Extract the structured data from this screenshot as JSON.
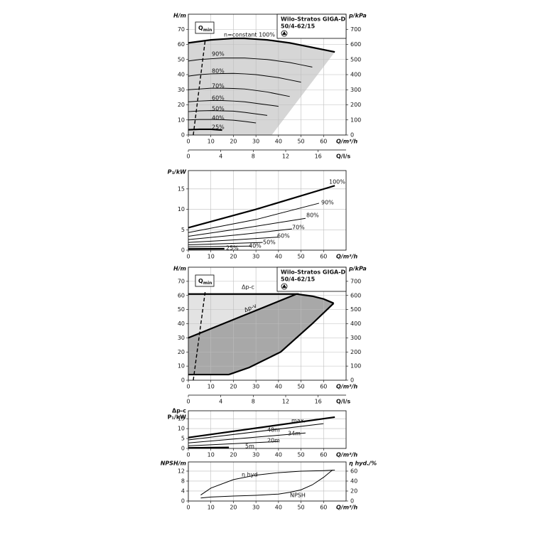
{
  "chart_data": [
    {
      "type": "line",
      "title": "Wilo-Stratos GIGA-D",
      "subtitle": "50/4-62/15",
      "ylabel": "H/m",
      "y2label": "p/kPa",
      "xlabel": "Q/m³/h",
      "x2label": "Q/l/s",
      "xlim": [
        0,
        70
      ],
      "xticks": [
        0,
        10,
        20,
        30,
        40,
        50,
        60
      ],
      "x2lim": [
        0,
        19.444
      ],
      "x2ticks": [
        0,
        4,
        8,
        12,
        16
      ],
      "ylim": [
        0,
        80
      ],
      "yticks": [
        0,
        10,
        20,
        30,
        40,
        50,
        60,
        70
      ],
      "y2lim": [
        0,
        800
      ],
      "y2ticks": [
        0,
        100,
        200,
        300,
        400,
        500,
        600,
        700
      ],
      "grid": true,
      "qmin": {
        "label": "Q",
        "label_sub": "min",
        "x": [
          2.2,
          7.5
        ],
        "values": [
          0,
          63
        ]
      },
      "boundary": {
        "x": [
          65,
          37
        ],
        "values": [
          55,
          0
        ]
      },
      "series": [
        {
          "name": "n=constant 100%",
          "color": "#000000",
          "x": [
            0,
            5,
            10,
            15,
            20,
            25,
            30,
            35,
            40,
            45,
            50,
            55,
            60,
            65
          ],
          "values": [
            61,
            62,
            63,
            63.5,
            64,
            64,
            63.5,
            63,
            62,
            61,
            59.5,
            58,
            56.5,
            55
          ]
        },
        {
          "name": "90%",
          "color": "#000000",
          "x": [
            0,
            5,
            10,
            15,
            20,
            25,
            30,
            35,
            40,
            45,
            50,
            55
          ],
          "values": [
            49,
            50,
            50.5,
            51,
            51,
            51,
            50.5,
            50,
            49,
            48,
            46.5,
            45
          ]
        },
        {
          "name": "80%",
          "color": "#000000",
          "x": [
            0,
            5,
            10,
            15,
            20,
            25,
            30,
            35,
            40,
            45,
            50
          ],
          "values": [
            39,
            40,
            40.5,
            40.7,
            40.8,
            40.5,
            40,
            39,
            38,
            36.5,
            35
          ]
        },
        {
          "name": "70%",
          "color": "#000000",
          "x": [
            0,
            5,
            10,
            15,
            20,
            25,
            30,
            35,
            40,
            45
          ],
          "values": [
            30,
            30.5,
            31,
            31,
            30.8,
            30.5,
            29.5,
            28.5,
            27,
            25.5
          ]
        },
        {
          "name": "60%",
          "color": "#000000",
          "x": [
            0,
            5,
            10,
            15,
            20,
            25,
            30,
            35,
            40
          ],
          "values": [
            22,
            22.5,
            22.8,
            22.8,
            22.5,
            22,
            21,
            20,
            19
          ]
        },
        {
          "name": "50%",
          "color": "#000000",
          "x": [
            0,
            5,
            10,
            15,
            20,
            25,
            30,
            35
          ],
          "values": [
            15.5,
            16,
            16.2,
            16,
            15.8,
            15,
            14,
            13
          ]
        },
        {
          "name": "40%",
          "color": "#000000",
          "x": [
            0,
            5,
            10,
            15,
            20,
            25,
            30
          ],
          "values": [
            10,
            10.3,
            10.3,
            10.2,
            9.8,
            9,
            8
          ]
        },
        {
          "name": "25%",
          "color": "#000000",
          "x": [
            0,
            5,
            10,
            15
          ],
          "values": [
            3.5,
            3.8,
            3.8,
            3.3
          ]
        }
      ]
    },
    {
      "type": "line",
      "ylabel": "P₁/kW",
      "xlabel": "Q/m³/h",
      "xlim": [
        0,
        70
      ],
      "xticks": [
        0,
        10,
        20,
        30,
        40,
        50,
        60
      ],
      "ylim": [
        0,
        19.5
      ],
      "yticks": [
        0,
        5,
        10,
        15
      ],
      "grid": true,
      "series": [
        {
          "name": "100%",
          "color": "#000000",
          "x": [
            0,
            30,
            65
          ],
          "values": [
            5.5,
            10,
            15.8
          ]
        },
        {
          "name": "90%",
          "color": "#000000",
          "x": [
            0,
            30,
            58
          ],
          "values": [
            4.3,
            7.5,
            11.5
          ]
        },
        {
          "name": "80%",
          "color": "#000000",
          "x": [
            0,
            26,
            52
          ],
          "values": [
            3.4,
            5.5,
            7.8
          ]
        },
        {
          "name": "70%",
          "color": "#000000",
          "x": [
            0,
            23,
            46
          ],
          "values": [
            2.6,
            3.8,
            5.2
          ]
        },
        {
          "name": "60%",
          "color": "#000000",
          "x": [
            0,
            20,
            40
          ],
          "values": [
            1.9,
            2.5,
            3.2
          ]
        },
        {
          "name": "50%",
          "color": "#000000",
          "x": [
            0,
            33
          ],
          "values": [
            1.3,
            1.9
          ]
        },
        {
          "name": "40%",
          "color": "#000000",
          "x": [
            0,
            28
          ],
          "values": [
            0.8,
            1.0
          ]
        },
        {
          "name": "25%",
          "color": "#000000",
          "x": [
            0,
            16
          ],
          "values": [
            0.3,
            0.35
          ]
        }
      ]
    },
    {
      "type": "line",
      "title": "Wilo-Stratos GIGA-D",
      "subtitle": "50/4-62/15",
      "ylabel": "H/m",
      "y2label": "p/kPa",
      "xlabel": "Q/m³/h",
      "x2label": "Q/l/s",
      "xlim": [
        0,
        70
      ],
      "xticks": [
        0,
        10,
        20,
        30,
        40,
        50,
        60
      ],
      "x2lim": [
        0,
        19.444
      ],
      "x2ticks": [
        0,
        4,
        8,
        12,
        16
      ],
      "ylim": [
        0,
        80
      ],
      "yticks": [
        0,
        10,
        20,
        30,
        40,
        50,
        60,
        70
      ],
      "y2lim": [
        0,
        800
      ],
      "y2ticks": [
        0,
        100,
        200,
        300,
        400,
        500,
        600,
        700
      ],
      "grid": true,
      "qmin": {
        "label": "Q",
        "label_sub": "min",
        "x": [
          2.2,
          7.5
        ],
        "values": [
          0,
          63
        ]
      },
      "series": [
        {
          "name": "Δp-c",
          "color": "#000000",
          "x": [
            0,
            49
          ],
          "values": [
            61,
            61
          ]
        },
        {
          "name": "Δp-v",
          "color": "#000000",
          "x": [
            0,
            48
          ],
          "values": [
            30,
            61
          ]
        },
        {
          "color": "#000000",
          "x": [
            48,
            55,
            60,
            64.5
          ],
          "values": [
            61,
            59.5,
            57.5,
            54.5
          ]
        },
        {
          "color": "#000000",
          "x": [
            64.5,
            55,
            41,
            27,
            18
          ],
          "values": [
            54.5,
            40,
            20,
            9,
            4
          ]
        },
        {
          "color": "#000000",
          "x": [
            0,
            18
          ],
          "values": [
            4,
            4
          ]
        }
      ]
    },
    {
      "type": "line",
      "ylabel": "Δp-c",
      "ylabel2": "P₁/kW",
      "xlabel": "Q/m³/h",
      "xlim": [
        0,
        70
      ],
      "xticks": [
        0,
        10,
        20,
        30,
        40,
        50,
        60
      ],
      "ylim": [
        0,
        19
      ],
      "yticks": [
        0,
        5,
        10,
        15
      ],
      "grid": true,
      "series": [
        {
          "name": "max.",
          "color": "#000000",
          "x": [
            0,
            65
          ],
          "values": [
            5.5,
            15.8
          ]
        },
        {
          "name": "48m",
          "color": "#000000",
          "x": [
            0,
            60
          ],
          "values": [
            4.3,
            12.5
          ]
        },
        {
          "name": "34m",
          "color": "#000000",
          "x": [
            0,
            52
          ],
          "values": [
            2.8,
            7.8
          ]
        },
        {
          "name": "20m",
          "color": "#000000",
          "x": [
            0,
            40
          ],
          "values": [
            1.3,
            3.5
          ]
        },
        {
          "name": "5m",
          "color": "#000000",
          "x": [
            0,
            18
          ],
          "values": [
            0.3,
            0.5
          ]
        }
      ]
    },
    {
      "type": "line",
      "ylabel": "NPSH/m",
      "y2label": "η hyd./%",
      "xlabel": "Q/m³/h",
      "xlim": [
        0,
        70
      ],
      "xticks": [
        0,
        10,
        20,
        30,
        40,
        50,
        60
      ],
      "ylim": [
        0,
        15.7
      ],
      "yticks": [
        0,
        4,
        8,
        12
      ],
      "y2lim": [
        0,
        78.5
      ],
      "y2ticks": [
        0,
        20,
        40,
        60
      ],
      "grid": true,
      "series": [
        {
          "name": "η hyd",
          "color": "#000000",
          "axis": "y2",
          "x": [
            5.5,
            10,
            20,
            30,
            40,
            50,
            60,
            65
          ],
          "values": [
            12,
            26,
            43,
            52,
            57,
            60,
            61,
            62
          ]
        },
        {
          "name": "NPSH",
          "color": "#000000",
          "x": [
            5.5,
            10,
            20,
            30,
            40,
            45,
            50,
            55,
            60,
            64
          ],
          "values": [
            1.2,
            1.6,
            2,
            2.3,
            2.8,
            3.5,
            4.5,
            6.5,
            9.5,
            12.5
          ]
        }
      ]
    }
  ]
}
